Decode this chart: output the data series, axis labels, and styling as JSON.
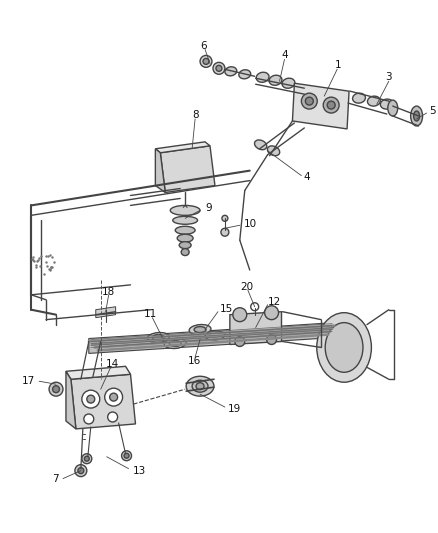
{
  "bg_color": "#ffffff",
  "line_color": "#444444",
  "label_color": "#111111",
  "fig_width": 4.38,
  "fig_height": 5.33,
  "dpi": 100
}
